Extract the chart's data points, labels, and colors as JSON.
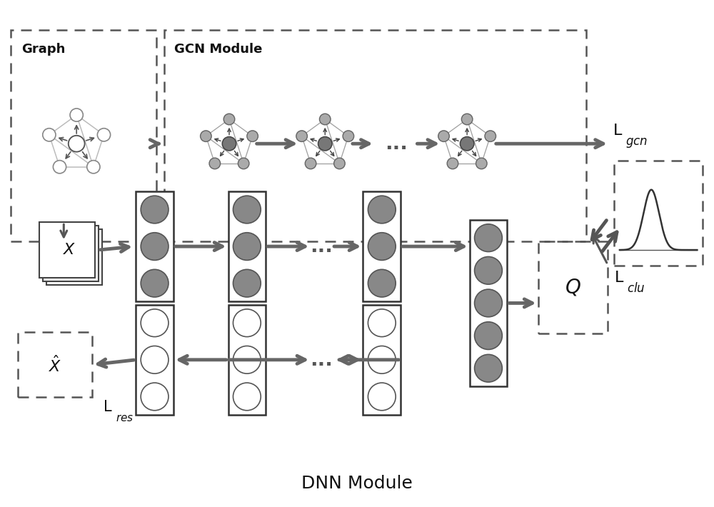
{
  "fig_width": 10.0,
  "fig_height": 7.1,
  "bg_color": "#ffffff",
  "arrow_color": "#666666",
  "node_gray": "#888888",
  "node_dark": "#555555",
  "edge_color": "#888888",
  "title": "DNN Module",
  "title_fontsize": 18
}
